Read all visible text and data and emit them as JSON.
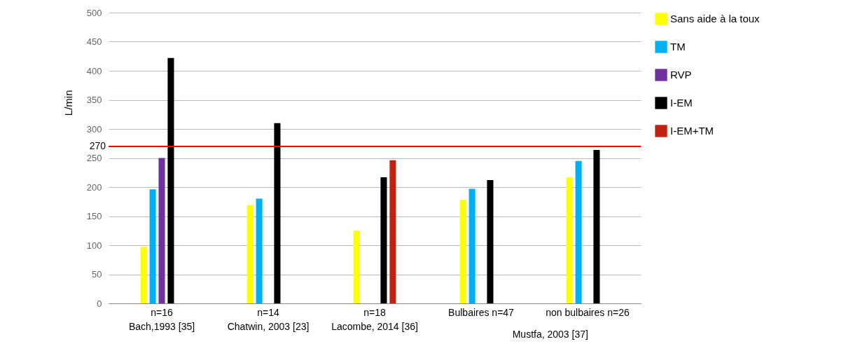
{
  "chart_data": {
    "type": "bar",
    "ylabel": "L/min",
    "categories": [
      "n=16\nBach,1993 [35]",
      "n=14\nChatwin,  2003 [23]",
      "n=18\nLacombe, 2014 [36]",
      "Bulbaires n=47",
      "non bulbaires n=26"
    ],
    "series": [
      {
        "name": "Sans aide à la toux",
        "color": "#ffff00",
        "values": [
          97,
          169,
          125,
          178,
          217
        ]
      },
      {
        "name": "TM",
        "color": "#00b0f0",
        "values": [
          196,
          180,
          null,
          197,
          245
        ]
      },
      {
        "name": "RVP",
        "color": "#7030a0",
        "values": [
          250,
          null,
          null,
          null,
          null
        ]
      },
      {
        "name": "I-EM",
        "color": "#000000",
        "values": [
          422,
          310,
          217,
          212,
          264
        ]
      },
      {
        "name": "I-EM+TM",
        "color": "#c0230f",
        "values": [
          null,
          null,
          246,
          null,
          null
        ]
      }
    ],
    "ylim": [
      0,
      500
    ],
    "yticks": [
      0,
      50,
      100,
      150,
      200,
      250,
      300,
      350,
      400,
      450,
      500
    ],
    "grid": "y",
    "legend": "right",
    "ref_lines": [
      {
        "axis": "y",
        "value": 270,
        "label": "270",
        "color": "#ff0000"
      }
    ],
    "annotations": [
      "Mustfa, 2003 [37]"
    ]
  }
}
